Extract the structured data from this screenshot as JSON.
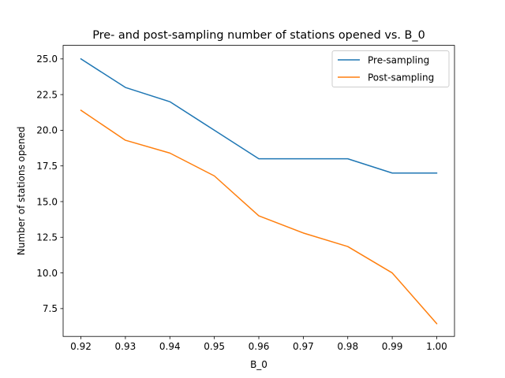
{
  "chart_data": {
    "type": "line",
    "title": "Pre- and post-sampling number of stations opened vs. B_0",
    "xlabel": "B_0",
    "ylabel": "Number of stations opened",
    "x": [
      0.92,
      0.93,
      0.94,
      0.95,
      0.96,
      0.97,
      0.98,
      0.99,
      1.0
    ],
    "xticks": [
      "0.92",
      "0.93",
      "0.94",
      "0.95",
      "0.96",
      "0.97",
      "0.98",
      "0.99",
      "1.00"
    ],
    "yticks": [
      "7.5",
      "10.0",
      "12.5",
      "15.0",
      "17.5",
      "20.0",
      "22.5",
      "25.0"
    ],
    "xlim": [
      0.916,
      1.004
    ],
    "ylim": [
      5.55,
      25.95
    ],
    "grid": false,
    "legend_position": "top-right",
    "series": [
      {
        "name": "Pre-sampling",
        "color": "#1f77b4",
        "values": [
          25.0,
          23.0,
          22.0,
          20.0,
          18.0,
          18.0,
          18.0,
          17.0,
          17.0
        ]
      },
      {
        "name": "Post-sampling",
        "color": "#ff7f0e",
        "values": [
          21.4,
          19.3,
          18.4,
          16.8,
          14.0,
          12.8,
          11.85,
          10.0,
          6.45
        ]
      }
    ]
  }
}
